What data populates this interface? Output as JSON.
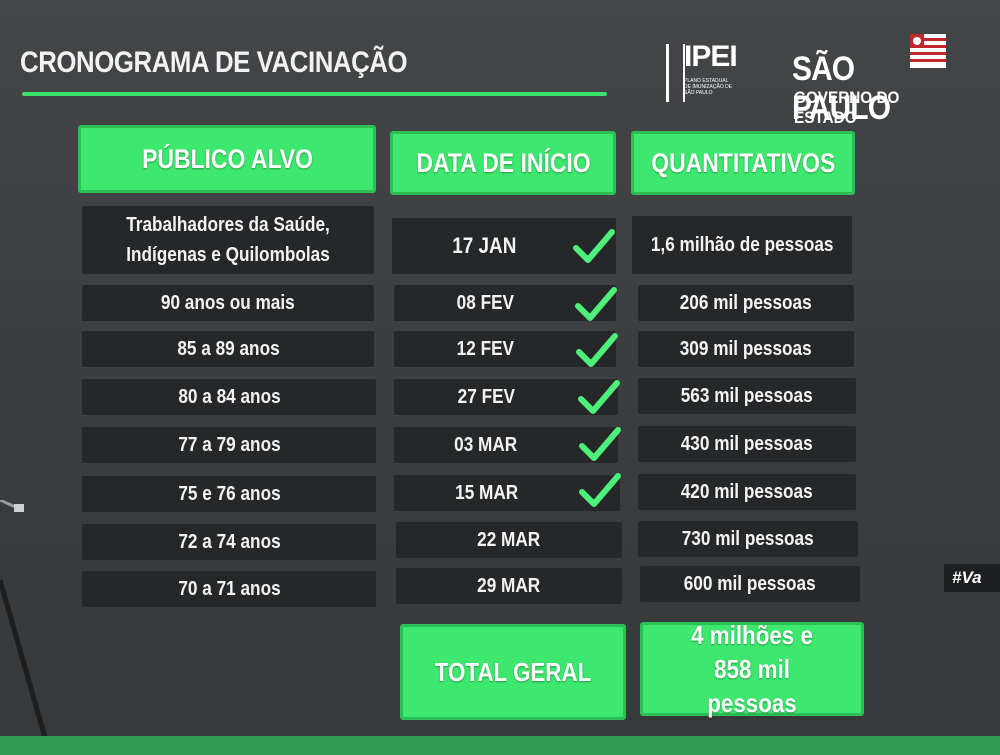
{
  "title": "CRONOGRAMA DE VACINAÇÃO",
  "logos": {
    "ipei": "IPEI",
    "ipei_sub": "PLANO ESTADUAL DE IMUNIZAÇÃO DE SÃO PAULO",
    "sp_main": "SÃO PAULO",
    "sp_sub": "GOVERNO DO ESTADO"
  },
  "headers": {
    "publico": "PÚBLICO ALVO",
    "data": "DATA DE INÍCIO",
    "quant": "QUANTITATIVOS"
  },
  "rows": [
    {
      "publico": "Trabalhadores da Saúde, Indígenas e Quilombolas",
      "data": "17 JAN",
      "quant": "1,6 milhão de pessoas",
      "checked": true
    },
    {
      "publico": "90 anos ou mais",
      "data": "08 FEV",
      "quant": "206 mil pessoas",
      "checked": true
    },
    {
      "publico": "85 a 89 anos",
      "data": "12 FEV",
      "quant": "309 mil pessoas",
      "checked": true
    },
    {
      "publico": "80 a 84 anos",
      "data": "27 FEV",
      "quant": "563 mil pessoas",
      "checked": true
    },
    {
      "publico": "77 a 79 anos",
      "data": "03 MAR",
      "quant": "430 mil pessoas",
      "checked": true
    },
    {
      "publico": "75 e 76 anos",
      "data": "15 MAR",
      "quant": "420 mil pessoas",
      "checked": true
    },
    {
      "publico": "72 a 74 anos",
      "data": "22 MAR",
      "quant": "730 mil pessoas",
      "checked": false
    },
    {
      "publico": "70 a 71 anos",
      "data": "29 MAR",
      "quant": "600 mil pessoas",
      "checked": false
    }
  ],
  "total": {
    "label": "TOTAL GERAL",
    "value": "4 milhões e 858 mil pessoas"
  },
  "side_tag": "#Va",
  "colors": {
    "accent": "#3ee86f",
    "cell": "#262728",
    "check": "#4cf07a"
  },
  "icons": {
    "check": "check-icon"
  }
}
